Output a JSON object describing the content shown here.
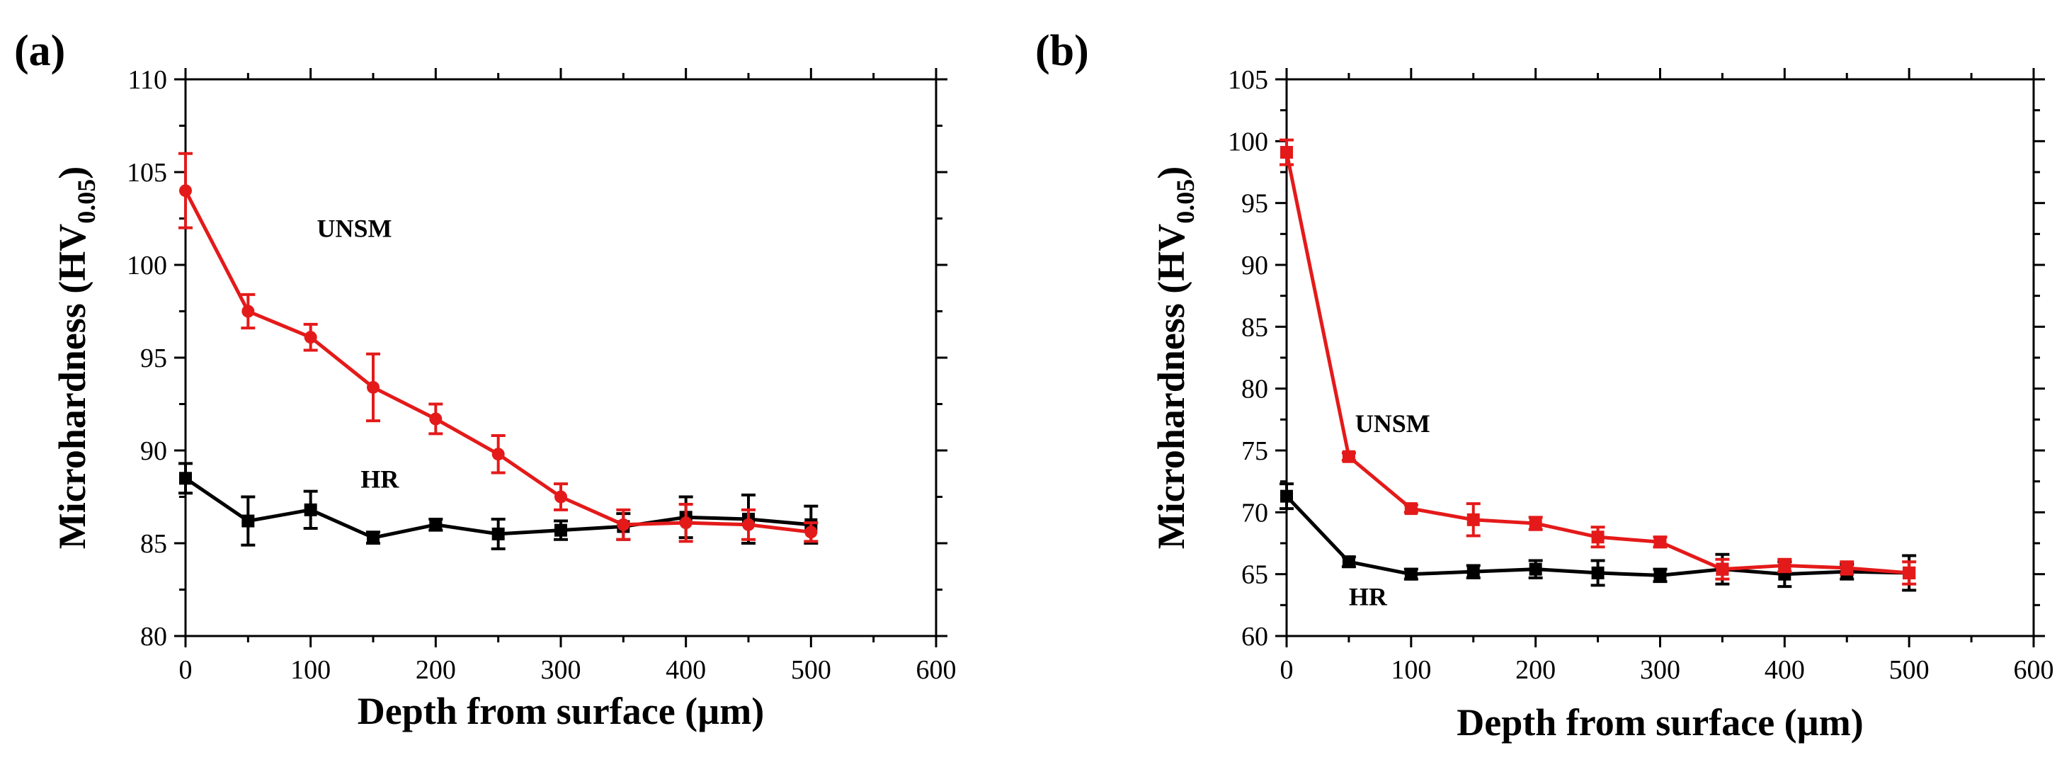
{
  "chart_data": [
    {
      "type": "line",
      "panel_label": "(a)",
      "xlabel": "Depth from surface (µm)",
      "ylabel_main": "Microhardness (HV",
      "ylabel_sub": "0.05",
      "ylabel_end": ")",
      "xlim": [
        0,
        600
      ],
      "ylim": [
        80,
        110
      ],
      "xticks": [
        0,
        100,
        200,
        300,
        400,
        500,
        600
      ],
      "yticks": [
        80,
        85,
        90,
        95,
        100,
        105,
        110
      ],
      "x": [
        0,
        50,
        100,
        150,
        200,
        250,
        300,
        350,
        400,
        450,
        500
      ],
      "series": [
        {
          "name": "HR",
          "color": "#000000",
          "marker": "square",
          "values": [
            88.5,
            86.2,
            86.8,
            85.3,
            86.0,
            85.5,
            85.7,
            85.9,
            86.4,
            86.3,
            86.0
          ],
          "errors": [
            0.8,
            1.3,
            1.0,
            0.3,
            0.3,
            0.8,
            0.5,
            0.7,
            1.1,
            1.3,
            1.0
          ]
        },
        {
          "name": "UNSM",
          "color": "#e41a1a",
          "marker": "circle",
          "values": [
            104.0,
            97.5,
            96.1,
            93.4,
            91.7,
            89.8,
            87.5,
            86.0,
            86.1,
            86.0,
            85.6
          ],
          "errors": [
            2.0,
            0.9,
            0.7,
            1.8,
            0.8,
            1.0,
            0.7,
            0.8,
            1.0,
            0.8,
            0.5
          ]
        }
      ],
      "annotations": [
        {
          "text": "UNSM",
          "x": 105,
          "y": 101.5
        },
        {
          "text": "HR",
          "x": 140,
          "y": 88.0
        }
      ]
    },
    {
      "type": "line",
      "panel_label": "(b)",
      "xlabel": "Depth from surface (µm)",
      "ylabel_main": "Microhardness (HV",
      "ylabel_sub": "0.05",
      "ylabel_end": ")",
      "xlim": [
        0,
        600
      ],
      "ylim": [
        60,
        105
      ],
      "xticks": [
        0,
        100,
        200,
        300,
        400,
        500,
        600
      ],
      "yticks": [
        60,
        65,
        70,
        75,
        80,
        85,
        90,
        95,
        100,
        105
      ],
      "x": [
        0,
        50,
        100,
        150,
        200,
        250,
        300,
        350,
        400,
        450,
        500
      ],
      "series": [
        {
          "name": "HR",
          "color": "#000000",
          "marker": "square",
          "values": [
            71.3,
            66.0,
            65.0,
            65.2,
            65.4,
            65.1,
            64.9,
            65.4,
            65.0,
            65.2,
            65.1
          ],
          "errors": [
            1.0,
            0.4,
            0.4,
            0.5,
            0.7,
            1.0,
            0.5,
            1.2,
            1.0,
            0.6,
            1.4
          ]
        },
        {
          "name": "UNSM",
          "color": "#e41a1a",
          "marker": "square",
          "values": [
            99.1,
            74.5,
            70.3,
            69.4,
            69.1,
            68.0,
            67.6,
            65.4,
            65.7,
            65.5,
            65.1
          ],
          "errors": [
            1.0,
            0.3,
            0.3,
            1.3,
            0.5,
            0.8,
            0.4,
            0.8,
            0.5,
            0.5,
            0.9
          ]
        }
      ],
      "annotations": [
        {
          "text": "UNSM",
          "x": 55,
          "y": 76.5
        },
        {
          "text": "HR",
          "x": 50,
          "y": 62.5
        }
      ]
    }
  ]
}
